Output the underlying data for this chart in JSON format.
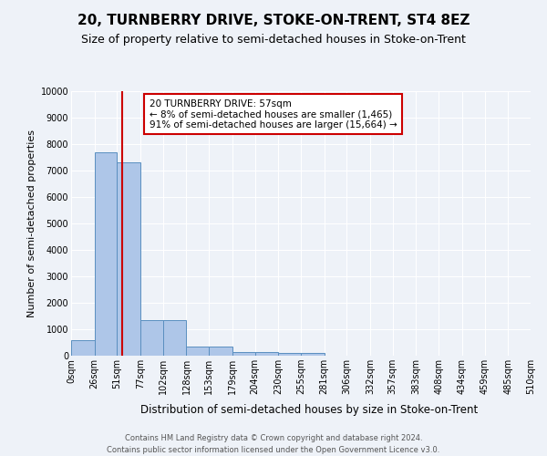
{
  "title": "20, TURNBERRY DRIVE, STOKE-ON-TRENT, ST4 8EZ",
  "subtitle": "Size of property relative to semi-detached houses in Stoke-on-Trent",
  "xlabel": "Distribution of semi-detached houses by size in Stoke-on-Trent",
  "ylabel": "Number of semi-detached properties",
  "bin_edges": [
    0,
    26,
    51,
    77,
    102,
    128,
    153,
    179,
    204,
    230,
    255,
    281,
    306,
    332,
    357,
    383,
    408,
    434,
    459,
    485,
    510
  ],
  "bar_heights": [
    600,
    7700,
    7300,
    1350,
    1350,
    350,
    350,
    150,
    150,
    100,
    100,
    0,
    0,
    0,
    0,
    0,
    0,
    0,
    0,
    0
  ],
  "bar_color": "#aec6e8",
  "bar_edge_color": "#5a8fc0",
  "property_size": 57,
  "red_line_color": "#cc0000",
  "annotation_title": "20 TURNBERRY DRIVE: 57sqm",
  "annotation_line1": "← 8% of semi-detached houses are smaller (1,465)",
  "annotation_line2": "91% of semi-detached houses are larger (15,664) →",
  "annotation_box_color": "#ffffff",
  "annotation_box_edge": "#cc0000",
  "ylim": [
    0,
    10000
  ],
  "yticks": [
    0,
    1000,
    2000,
    3000,
    4000,
    5000,
    6000,
    7000,
    8000,
    9000,
    10000
  ],
  "footer_line1": "Contains HM Land Registry data © Crown copyright and database right 2024.",
  "footer_line2": "Contains public sector information licensed under the Open Government Licence v3.0.",
  "background_color": "#eef2f8",
  "grid_color": "#ffffff",
  "title_fontsize": 11,
  "subtitle_fontsize": 9,
  "tick_label_fontsize": 7,
  "ylabel_fontsize": 8,
  "xlabel_fontsize": 8.5,
  "annotation_fontsize": 7.5,
  "footer_fontsize": 6
}
